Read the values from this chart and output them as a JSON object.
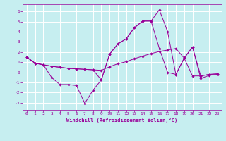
{
  "xlabel": "Windchill (Refroidissement éolien,°C)",
  "bg_color": "#c6eef0",
  "grid_color": "#ffffff",
  "line_color": "#990099",
  "xlim": [
    -0.5,
    23.5
  ],
  "ylim": [
    -3.7,
    6.7
  ],
  "xticks": [
    0,
    1,
    2,
    3,
    4,
    5,
    6,
    7,
    8,
    9,
    10,
    11,
    12,
    13,
    14,
    15,
    16,
    17,
    18,
    19,
    20,
    21,
    22,
    23
  ],
  "yticks": [
    -3,
    -2,
    -1,
    0,
    1,
    2,
    3,
    4,
    5,
    6
  ],
  "series1_x": [
    0,
    1,
    2,
    3,
    4,
    5,
    6,
    7,
    8,
    9,
    10,
    11,
    12,
    13,
    14,
    15,
    16,
    17,
    18,
    19,
    20,
    21,
    22,
    23
  ],
  "series1_y": [
    1.5,
    0.9,
    0.75,
    -0.5,
    -1.2,
    -1.2,
    -1.3,
    -3.05,
    -1.75,
    -0.75,
    1.8,
    2.8,
    3.3,
    4.4,
    5.05,
    5.05,
    6.15,
    4.0,
    -0.2,
    1.4,
    2.5,
    -0.6,
    -0.3,
    -0.2
  ],
  "series2_x": [
    0,
    1,
    2,
    3,
    4,
    5,
    6,
    7,
    8,
    9,
    10,
    11,
    12,
    13,
    14,
    15,
    16,
    17,
    18,
    19,
    20,
    21,
    22,
    23
  ],
  "series2_y": [
    1.5,
    0.9,
    0.75,
    0.6,
    0.5,
    0.4,
    0.35,
    0.3,
    0.25,
    0.2,
    0.55,
    0.85,
    1.05,
    1.35,
    1.6,
    1.85,
    2.05,
    2.2,
    2.35,
    1.4,
    -0.35,
    -0.35,
    -0.2,
    -0.15
  ],
  "series3_x": [
    0,
    1,
    2,
    3,
    4,
    5,
    6,
    7,
    8,
    9,
    10,
    11,
    12,
    13,
    14,
    15,
    16,
    17,
    18,
    19,
    20,
    21,
    22,
    23
  ],
  "series3_y": [
    1.5,
    0.9,
    0.75,
    0.6,
    0.5,
    0.4,
    0.35,
    0.3,
    0.25,
    -0.75,
    1.8,
    2.8,
    3.3,
    4.4,
    5.05,
    5.05,
    2.35,
    0.0,
    -0.2,
    1.4,
    2.5,
    -0.35,
    -0.2,
    -0.15
  ]
}
